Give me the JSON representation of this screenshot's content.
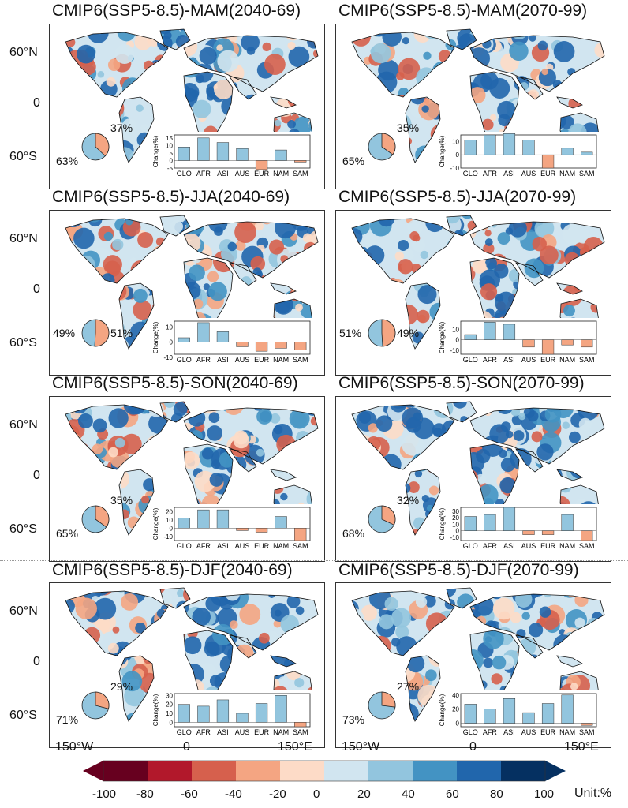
{
  "lat_labels": [
    "60°N",
    "0",
    "60°S"
  ],
  "lon_labels": [
    "150°W",
    "0",
    "150°E"
  ],
  "colorbar": {
    "ticks": [
      "-100",
      "-80",
      "-60",
      "-40",
      "-20",
      "0",
      "20",
      "40",
      "60",
      "80",
      "100"
    ],
    "unit": "Unit:%",
    "colors": [
      "#67001f",
      "#b2182b",
      "#d6604d",
      "#f4a582",
      "#fddbc7",
      "#d1e5f0",
      "#92c5de",
      "#4393c3",
      "#2166ac",
      "#053061"
    ]
  },
  "inset_y_label": "Change(%)",
  "regions": [
    "GLO",
    "AFR",
    "ASI",
    "AUS",
    "EUR",
    "NAM",
    "SAM"
  ],
  "panels": [
    {
      "title": "CMIP6(SSP5-8.5)-MAM(2040-69)",
      "pie_pos": 37,
      "pie_neg": 63,
      "pos_label": "37%",
      "neg_label": "63%",
      "chart_data": {
        "type": "bar",
        "categories": [
          "GLO",
          "AFR",
          "ASI",
          "AUS",
          "EUR",
          "NAM",
          "SAM"
        ],
        "values": [
          9,
          15,
          12,
          8,
          -6,
          7,
          -1
        ],
        "ylim": [
          -5,
          17
        ],
        "yticks": [
          "15",
          "10",
          "5",
          "0",
          "-5"
        ]
      }
    },
    {
      "title": "CMIP6(SSP5-8.5)-MAM(2070-99)",
      "pie_pos": 35,
      "pie_neg": 65,
      "pos_label": "35%",
      "neg_label": "65%",
      "chart_data": {
        "type": "bar",
        "categories": [
          "GLO",
          "AFR",
          "ASI",
          "AUS",
          "EUR",
          "NAM",
          "SAM"
        ],
        "values": [
          11,
          15,
          16,
          11,
          -10,
          5,
          2
        ],
        "ylim": [
          -10,
          15
        ],
        "yticks": [
          "10",
          "0",
          "-10"
        ]
      }
    },
    {
      "title": "CMIP6(SSP5-8.5)-JJA(2040-69)",
      "pie_pos": 51,
      "pie_neg": 49,
      "pos_label": "51%",
      "neg_label": "49%",
      "chart_data": {
        "type": "bar",
        "categories": [
          "GLO",
          "AFR",
          "ASI",
          "AUS",
          "EUR",
          "NAM",
          "SAM"
        ],
        "values": [
          3,
          13,
          7,
          -3,
          -6,
          -4,
          -5
        ],
        "ylim": [
          -8,
          14
        ],
        "yticks": [
          "10",
          "0",
          "-10"
        ]
      }
    },
    {
      "title": "CMIP6(SSP5-8.5)-JJA(2070-99)",
      "pie_pos": 49,
      "pie_neg": 51,
      "pos_label": "49%",
      "neg_label": "51%",
      "chart_data": {
        "type": "bar",
        "categories": [
          "GLO",
          "AFR",
          "ASI",
          "AUS",
          "EUR",
          "NAM",
          "SAM"
        ],
        "values": [
          5,
          17,
          15,
          -7,
          -14,
          -5,
          -7
        ],
        "ylim": [
          -14,
          18
        ],
        "yticks": [
          "10",
          "0",
          "-10"
        ]
      }
    },
    {
      "title": "CMIP6(SSP5-8.5)-SON(2040-69)",
      "pie_pos": 35,
      "pie_neg": 65,
      "pos_label": "35%",
      "neg_label": "65%",
      "chart_data": {
        "type": "bar",
        "categories": [
          "GLO",
          "AFR",
          "ASI",
          "AUS",
          "EUR",
          "NAM",
          "SAM"
        ],
        "values": [
          12,
          22,
          22,
          -3,
          -5,
          14,
          -15
        ],
        "ylim": [
          -15,
          25
        ],
        "yticks": [
          "20",
          "10",
          "0",
          "-10"
        ]
      }
    },
    {
      "title": "CMIP6(SSP5-8.5)-SON(2070-99)",
      "pie_pos": 32,
      "pie_neg": 68,
      "pos_label": "32%",
      "neg_label": "68%",
      "chart_data": {
        "type": "bar",
        "categories": [
          "GLO",
          "AFR",
          "ASI",
          "AUS",
          "EUR",
          "NAM",
          "SAM"
        ],
        "values": [
          22,
          25,
          36,
          -6,
          -6,
          25,
          -15
        ],
        "ylim": [
          -15,
          36
        ],
        "yticks": [
          "30",
          "20",
          "10",
          "0",
          "-10"
        ]
      }
    },
    {
      "title": "CMIP6(SSP5-8.5)-DJF(2040-69)",
      "pie_pos": 29,
      "pie_neg": 71,
      "pos_label": "29%",
      "neg_label": "71%",
      "chart_data": {
        "type": "bar",
        "categories": [
          "GLO",
          "AFR",
          "ASI",
          "AUS",
          "EUR",
          "NAM",
          "SAM"
        ],
        "values": [
          20,
          18,
          25,
          10,
          21,
          30,
          -5
        ],
        "ylim": [
          -5,
          32
        ],
        "yticks": [
          "30",
          "20",
          "10",
          "0"
        ]
      }
    },
    {
      "title": "CMIP6(SSP5-8.5)-DJF(2070-99)",
      "pie_pos": 27,
      "pie_neg": 73,
      "pos_label": "27%",
      "neg_label": "73%",
      "chart_data": {
        "type": "bar",
        "categories": [
          "GLO",
          "AFR",
          "ASI",
          "AUS",
          "EUR",
          "NAM",
          "SAM"
        ],
        "values": [
          27,
          20,
          35,
          15,
          28,
          40,
          -3
        ],
        "ylim": [
          -5,
          42
        ],
        "yticks": [
          "40",
          "20",
          "0"
        ]
      }
    }
  ]
}
